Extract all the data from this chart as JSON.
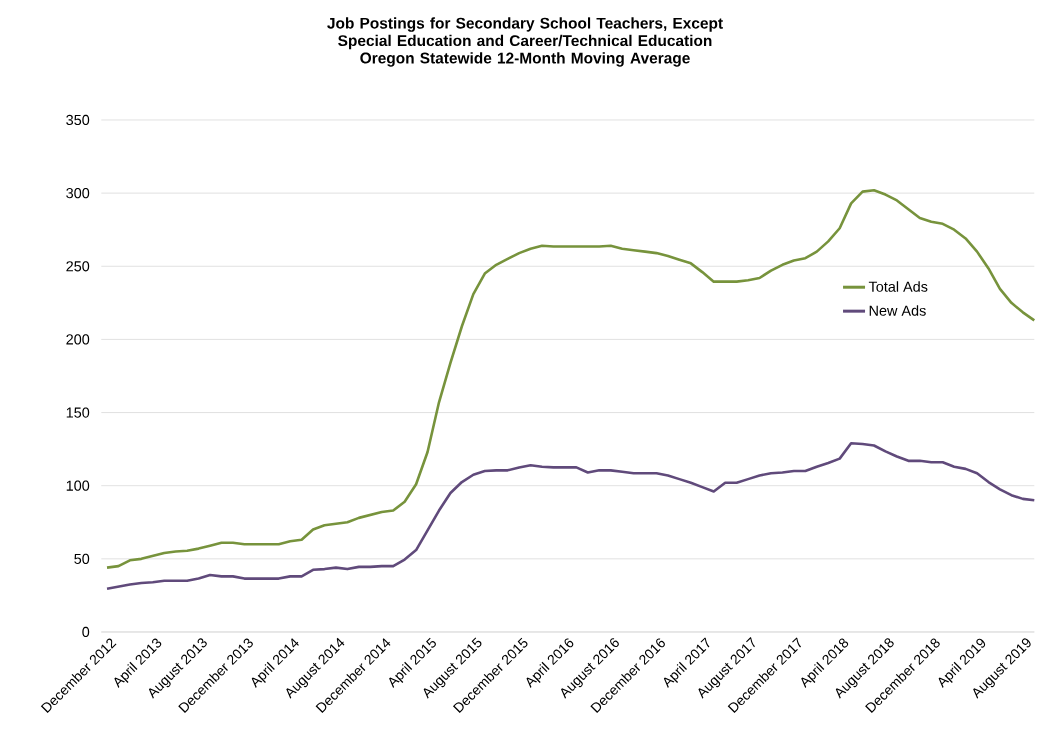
{
  "chart_data": {
    "type": "line",
    "title": "Job Postings for Secondary School Teachers, Except Special Education and Career/Technical Education",
    "subtitle": "Oregon Statewide 12-Month Moving Average",
    "categories": [
      "December 2012",
      null,
      null,
      null,
      "April 2013",
      null,
      null,
      null,
      "August 2013",
      null,
      null,
      null,
      "December 2013",
      null,
      null,
      null,
      "April 2014",
      null,
      null,
      null,
      "August 2014",
      null,
      null,
      null,
      "December 2014",
      null,
      null,
      null,
      "April 2015",
      null,
      null,
      null,
      "August 2015",
      null,
      null,
      null,
      "December 2015",
      null,
      null,
      null,
      "April 2016",
      null,
      null,
      null,
      "August 2016",
      null,
      null,
      null,
      "December 2016",
      null,
      null,
      null,
      "April 2017",
      null,
      null,
      null,
      "August 2017",
      null,
      null,
      null,
      "December 2017",
      null,
      null,
      null,
      "April 2018",
      null,
      null,
      null,
      "August 2018",
      null,
      null,
      null,
      "December 2018",
      null,
      null,
      null,
      "April 2019",
      null,
      null,
      null,
      "August 2019",
      null
    ],
    "series": [
      {
        "name": "Total Ads",
        "color": "#77933c",
        "values": [
          44,
          45,
          49,
          50,
          52,
          54,
          55,
          55.5,
          57,
          59,
          61,
          61,
          60,
          60,
          60,
          60,
          62,
          63,
          70,
          73,
          74,
          75,
          78,
          80,
          82,
          83,
          89,
          101,
          123,
          157,
          184,
          209,
          231,
          245,
          251,
          255,
          259,
          262,
          264,
          263.5,
          263.5,
          263.5,
          263.5,
          263.5,
          264,
          262,
          261,
          260,
          259,
          257,
          254.5,
          252,
          246,
          239.5,
          239.5,
          239.5,
          240.5,
          242,
          247,
          251,
          254,
          255.5,
          260,
          267,
          276,
          293,
          301,
          302,
          299,
          295,
          289,
          283,
          280.5,
          279,
          275,
          269,
          260,
          248.5,
          234.5,
          225,
          218.5,
          213
        ]
      },
      {
        "name": "New Ads",
        "color": "#604a7b",
        "values": [
          29.5,
          31,
          32.5,
          33.5,
          34,
          35,
          35,
          35,
          36.5,
          39,
          38,
          38,
          36.5,
          36.5,
          36.5,
          36.5,
          38,
          38,
          42.5,
          43,
          44,
          43,
          44.5,
          44.5,
          45,
          45,
          49.5,
          56,
          69.5,
          83,
          95,
          102.5,
          107.5,
          110,
          110.5,
          110.5,
          112.5,
          114,
          113,
          112.5,
          112.5,
          112.5,
          109,
          110.5,
          110.5,
          109.5,
          108.5,
          108.5,
          108.5,
          107,
          104.5,
          102,
          99,
          96,
          102,
          102,
          104.5,
          107,
          108.5,
          109,
          110,
          110,
          113,
          115.5,
          118.5,
          129,
          128.5,
          127.5,
          123.5,
          120,
          117,
          117,
          116,
          116,
          113,
          111.5,
          108.5,
          102.5,
          97.5,
          93.5,
          91,
          90
        ]
      }
    ],
    "ylim": [
      0,
      350
    ],
    "yticks": [
      0,
      50,
      100,
      150,
      200,
      250,
      300,
      350
    ],
    "grid": "y",
    "legend": "right",
    "marker": "none",
    "line_style": "solid"
  }
}
